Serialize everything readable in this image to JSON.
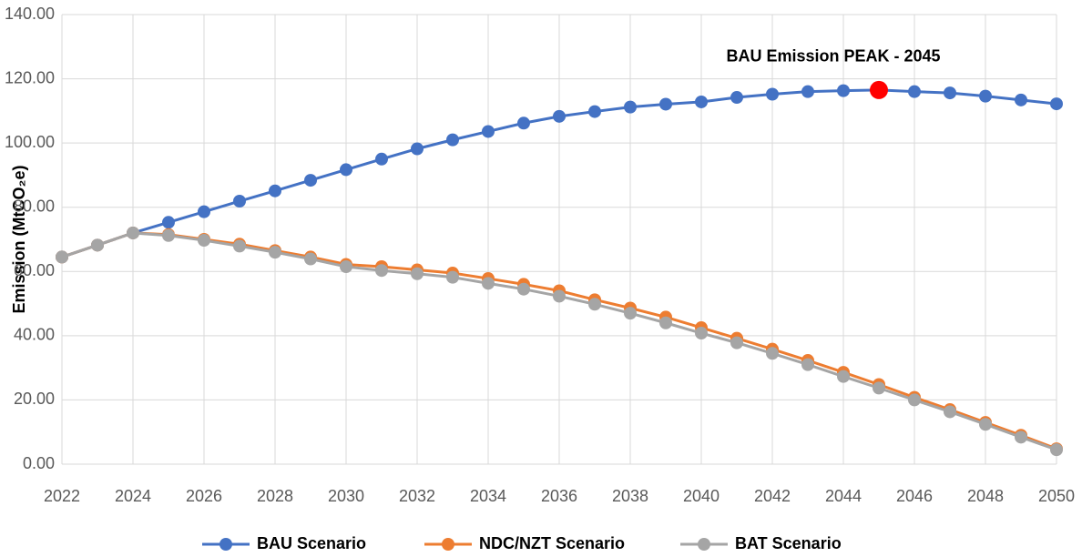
{
  "chart_data": {
    "type": "line",
    "y_label": "Emission (MtCO₂e)",
    "x": [
      2022,
      2023,
      2024,
      2025,
      2026,
      2027,
      2028,
      2029,
      2030,
      2031,
      2032,
      2033,
      2034,
      2035,
      2036,
      2037,
      2038,
      2039,
      2040,
      2041,
      2042,
      2043,
      2044,
      2045,
      2046,
      2047,
      2048,
      2049,
      2050
    ],
    "xlim": [
      2022,
      2050
    ],
    "xticks": [
      2022,
      2024,
      2026,
      2028,
      2030,
      2032,
      2034,
      2036,
      2038,
      2040,
      2042,
      2044,
      2046,
      2048,
      2050
    ],
    "ylim": [
      0,
      140
    ],
    "yticks": [
      {
        "value": 0,
        "label": "0.00"
      },
      {
        "value": 20,
        "label": "20.00"
      },
      {
        "value": 40,
        "label": "40.00"
      },
      {
        "value": 60,
        "label": "60.00"
      },
      {
        "value": 80,
        "label": "80.00"
      },
      {
        "value": 100,
        "label": "100.00"
      },
      {
        "value": 120,
        "label": "120.00"
      },
      {
        "value": 140,
        "label": "140.00"
      }
    ],
    "grid": true,
    "legend": "bottom",
    "series": [
      {
        "name": "BAU Scenario",
        "color": "#4472c4",
        "values": [
          64.5,
          68.2,
          72,
          75.3,
          78.6,
          81.9,
          85.1,
          88.4,
          91.7,
          95,
          98.2,
          101,
          103.6,
          106.2,
          108.3,
          109.8,
          111.2,
          112.1,
          112.8,
          114.2,
          115.2,
          116,
          116.3,
          116.5,
          116,
          115.6,
          114.6,
          113.4,
          112.2
        ]
      },
      {
        "name": "NDC/NZT Scenario",
        "color": "#ed7d31",
        "values": [
          64.5,
          68.2,
          72,
          71.5,
          70,
          68.5,
          66.5,
          64.5,
          62.2,
          61.5,
          60.5,
          59.5,
          57.8,
          56,
          54,
          51.2,
          48.6,
          45.8,
          42.5,
          39.2,
          35.8,
          32.3,
          28.6,
          24.8,
          20.8,
          17,
          13,
          9,
          4.8
        ]
      },
      {
        "name": "BAT Scenario",
        "color": "#a5a5a5",
        "values": [
          64.5,
          68.2,
          72,
          71.2,
          69.7,
          67.9,
          66,
          63.9,
          61.5,
          60.3,
          59.3,
          58.2,
          56.3,
          54.5,
          52.3,
          49.8,
          47,
          44,
          40.8,
          37.8,
          34.5,
          31,
          27.3,
          23.7,
          20,
          16.3,
          12.4,
          8.4,
          4.5
        ]
      }
    ],
    "annotations": [
      {
        "text": "BAU Emission PEAK - 2045",
        "x": 2045,
        "y": 116.5,
        "color": "#ff0000"
      }
    ]
  }
}
